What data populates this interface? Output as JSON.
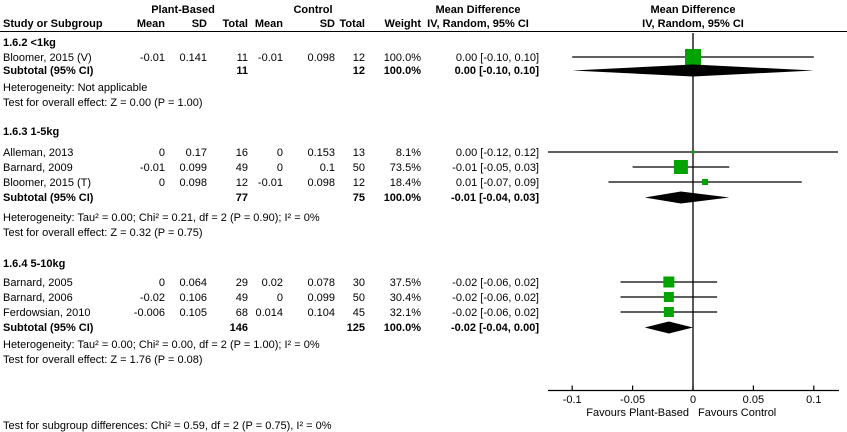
{
  "chart_data": {
    "type": "forest",
    "effect_measure": "Mean Difference",
    "model": "IV, Random, 95% CI",
    "columns": {
      "study": "Study or Subgroup",
      "group1": "Plant-Based",
      "group2": "Control",
      "mean": "Mean",
      "sd": "SD",
      "total": "Total",
      "weight": "Weight",
      "effect_line1": "Mean Difference",
      "effect_line2": "IV, Random, 95% CI"
    },
    "x_axis": {
      "min": -0.1,
      "max": 0.1,
      "ticks": [
        -0.1,
        -0.05,
        0,
        0.05,
        0.1
      ],
      "tick_labels": [
        "-0.1",
        "-0.05",
        "0",
        "0.05",
        "0.1"
      ],
      "favours_left": "Favours Plant-Based",
      "favours_right": "Favours Control"
    },
    "subgroups": [
      {
        "title": "1.6.2 <1kg",
        "studies": [
          {
            "study": "Bloomer, 2015 (V)",
            "mean1": "-0.01",
            "sd1": "0.141",
            "total1": "11",
            "mean2": "-0.01",
            "sd2": "0.098",
            "total2": "12",
            "weight": "100.0%",
            "ci_label": "0.00 [-0.10, 0.10]",
            "md": 0,
            "lo": -0.1,
            "hi": 0.1,
            "marker": 16
          }
        ],
        "subtotal": {
          "label": "Subtotal (95% CI)",
          "total1": "11",
          "total2": "12",
          "weight": "100.0%",
          "ci_label": "0.00 [-0.10, 0.10]",
          "md": 0,
          "lo": -0.1,
          "hi": 0.1
        },
        "heterogeneity": "Heterogeneity: Not applicable",
        "overall_effect": "Test for overall effect: Z = 0.00 (P = 1.00)"
      },
      {
        "title": "1.6.3 1-5kg",
        "studies": [
          {
            "study": "Alleman, 2013",
            "mean1": "0",
            "sd1": "0.17",
            "total1": "16",
            "mean2": "0",
            "sd2": "0.153",
            "total2": "13",
            "weight": "8.1%",
            "ci_label": "0.00 [-0.12, 0.12]",
            "md": 0,
            "lo": -0.12,
            "hi": 0.12,
            "marker": 3
          },
          {
            "study": "Barnard, 2009",
            "mean1": "-0.01",
            "sd1": "0.099",
            "total1": "49",
            "mean2": "0",
            "sd2": "0.1",
            "total2": "50",
            "weight": "73.5%",
            "ci_label": "-0.01 [-0.05, 0.03]",
            "md": -0.01,
            "lo": -0.05,
            "hi": 0.03,
            "marker": 14
          },
          {
            "study": "Bloomer, 2015 (T)",
            "mean1": "0",
            "sd1": "0.098",
            "total1": "12",
            "mean2": "-0.01",
            "sd2": "0.098",
            "total2": "12",
            "weight": "18.4%",
            "ci_label": "0.01 [-0.07, 0.09]",
            "md": 0.01,
            "lo": -0.07,
            "hi": 0.09,
            "marker": 6
          }
        ],
        "subtotal": {
          "label": "Subtotal (95% CI)",
          "total1": "77",
          "total2": "75",
          "weight": "100.0%",
          "ci_label": "-0.01 [-0.04, 0.03]",
          "md": -0.01,
          "lo": -0.04,
          "hi": 0.03
        },
        "heterogeneity": "Heterogeneity: Tau² = 0.00; Chi² = 0.21, df = 2 (P = 0.90); I² = 0%",
        "overall_effect": "Test for overall effect: Z = 0.32 (P = 0.75)"
      },
      {
        "title": "1.6.4 5-10kg",
        "studies": [
          {
            "study": "Barnard, 2005",
            "mean1": "0",
            "sd1": "0.064",
            "total1": "29",
            "mean2": "0.02",
            "sd2": "0.078",
            "total2": "30",
            "weight": "37.5%",
            "ci_label": "-0.02 [-0.06, 0.02]",
            "md": -0.02,
            "lo": -0.06,
            "hi": 0.02,
            "marker": 11
          },
          {
            "study": "Barnard, 2006",
            "mean1": "-0.02",
            "sd1": "0.106",
            "total1": "49",
            "mean2": "0",
            "sd2": "0.099",
            "total2": "50",
            "weight": "30.4%",
            "ci_label": "-0.02 [-0.06, 0.02]",
            "md": -0.02,
            "lo": -0.06,
            "hi": 0.02,
            "marker": 10
          },
          {
            "study": "Ferdowsian, 2010",
            "mean1": "-0.006",
            "sd1": "0.105",
            "total1": "68",
            "mean2": "0.014",
            "sd2": "0.104",
            "total2": "45",
            "weight": "32.1%",
            "ci_label": "-0.02 [-0.06, 0.02]",
            "md": -0.02,
            "lo": -0.06,
            "hi": 0.02,
            "marker": 10
          }
        ],
        "subtotal": {
          "label": "Subtotal (95% CI)",
          "total1": "146",
          "total2": "125",
          "weight": "100.0%",
          "ci_label": "-0.02 [-0.04, 0.00]",
          "md": -0.02,
          "lo": -0.04,
          "hi": 0
        },
        "heterogeneity": "Heterogeneity: Tau² = 0.00; Chi² = 0.00, df = 2 (P = 1.00); I² = 0%",
        "overall_effect": "Test for overall effect: Z = 1.76 (P = 0.08)"
      }
    ],
    "footer": "Test for subgroup differences: Chi² = 0.59, df = 2 (P = 0.75), I² = 0%",
    "colors": {
      "marker": "#00a300",
      "diamond": "#000000",
      "axis": "#000000",
      "text": "#000000"
    }
  }
}
